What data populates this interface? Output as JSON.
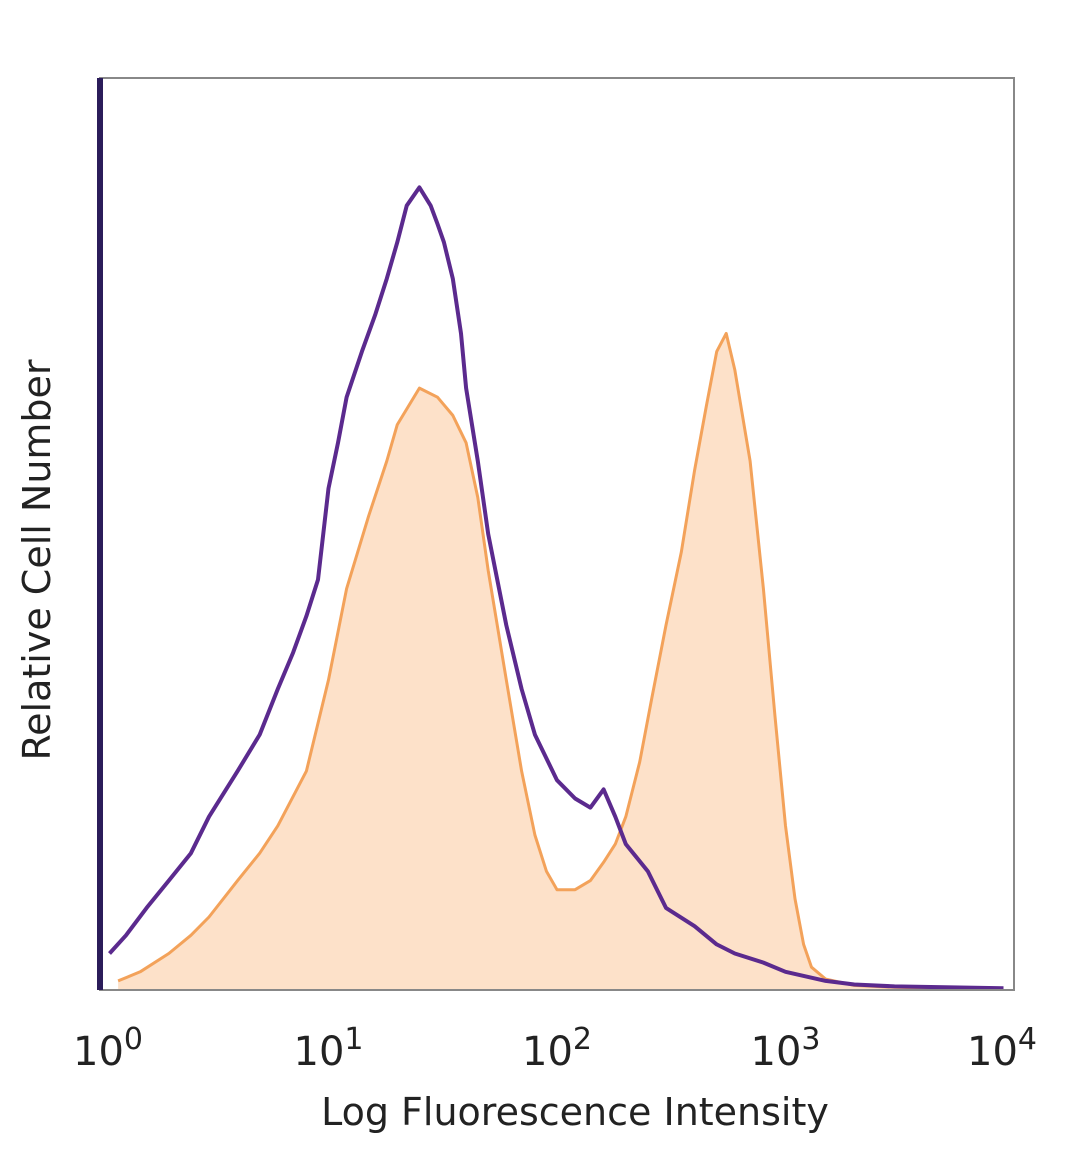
{
  "chart_data": {
    "type": "area",
    "title": "",
    "xlabel": "Log Fluorescence Intensity",
    "ylabel": "Relative Cell Number",
    "x_scale": "log",
    "xlim": [
      1,
      10000
    ],
    "ylim": [
      0,
      100
    ],
    "grid": false,
    "legend": "none",
    "x_ticks": [
      {
        "base": "10",
        "exp": "0",
        "value": 1
      },
      {
        "base": "10",
        "exp": "1",
        "value": 10
      },
      {
        "base": "10",
        "exp": "2",
        "value": 100
      },
      {
        "base": "10",
        "exp": "3",
        "value": 1000
      },
      {
        "base": "10",
        "exp": "4",
        "value": 10000
      }
    ],
    "colors": {
      "control_line": "#5b2a8e",
      "stained_line": "#f3a25a",
      "stained_fill": "#fde1c9",
      "frame": "#888888",
      "y_axis": "#2b1c5a"
    },
    "series": [
      {
        "style": "line",
        "x": [
          1.1,
          1.3,
          1.6,
          2.0,
          2.5,
          3.0,
          4.0,
          5.0,
          6.0,
          7.0,
          8.0,
          9.0,
          10,
          11,
          12,
          14,
          16,
          18,
          20,
          22,
          25,
          28,
          30,
          32,
          35,
          38,
          40,
          45,
          50,
          60,
          70,
          80,
          100,
          120,
          140,
          160,
          180,
          200,
          250,
          300,
          400,
          500,
          600,
          800,
          1000,
          1500,
          2000,
          3000,
          5000,
          9000
        ],
        "values": [
          4,
          6,
          9,
          12,
          15,
          19,
          24,
          28,
          33,
          37,
          41,
          45,
          55,
          60,
          65,
          70,
          74,
          78,
          82,
          86,
          88,
          86,
          84,
          82,
          78,
          72,
          66,
          58,
          50,
          40,
          33,
          28,
          23,
          21,
          20,
          22,
          19,
          16,
          13,
          9,
          7,
          5,
          4,
          3,
          2,
          1,
          0.6,
          0.4,
          0.3,
          0.2
        ]
      },
      {
        "style": "filled",
        "x": [
          1.2,
          1.5,
          2.0,
          2.5,
          3.0,
          4.0,
          5.0,
          6.0,
          8.0,
          10,
          12,
          15,
          18,
          20,
          25,
          30,
          35,
          40,
          45,
          50,
          60,
          70,
          80,
          90,
          100,
          120,
          140,
          160,
          180,
          200,
          230,
          260,
          300,
          350,
          400,
          450,
          500,
          550,
          600,
          700,
          800,
          900,
          1000,
          1100,
          1200,
          1300,
          1500,
          2000,
          3000,
          5000,
          9000
        ],
        "values": [
          1,
          2,
          4,
          6,
          8,
          12,
          15,
          18,
          24,
          34,
          44,
          52,
          58,
          62,
          66,
          65,
          63,
          60,
          54,
          46,
          34,
          24,
          17,
          13,
          11,
          11,
          12,
          14,
          16,
          19,
          25,
          32,
          40,
          48,
          57,
          64,
          70,
          72,
          68,
          58,
          44,
          30,
          18,
          10,
          5,
          2.5,
          1.2,
          0.5,
          0.3,
          0.2,
          0.1
        ]
      }
    ]
  }
}
